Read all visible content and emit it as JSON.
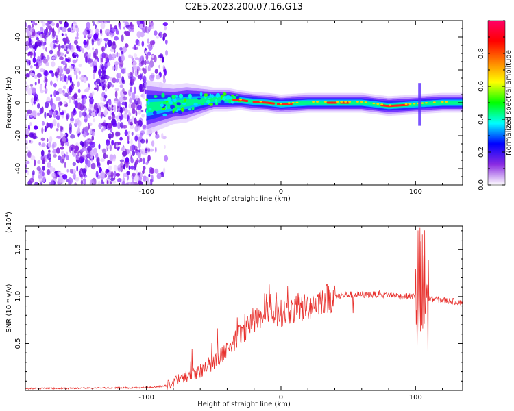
{
  "title": "C2E5.2023.200.07.16.G13",
  "chart_data": [
    {
      "type": "heatmap",
      "xlabel": "Height of straight line (km)",
      "ylabel": "Frequency (Hz)",
      "xlim": [
        -190,
        135
      ],
      "ylim": [
        -50,
        50
      ],
      "xticks": [
        -100,
        0,
        100
      ],
      "yticks": [
        -40,
        -20,
        0,
        20,
        40
      ],
      "noise_region_x": [
        -190,
        -85
      ],
      "ridge": [
        [
          -100,
          -3,
          7
        ],
        [
          -90,
          -2,
          6
        ],
        [
          -80,
          -1,
          5
        ],
        [
          -70,
          0,
          5
        ],
        [
          -60,
          1,
          4
        ],
        [
          -50,
          2,
          3
        ],
        [
          -40,
          2,
          3
        ],
        [
          -30,
          1.5,
          2.5
        ],
        [
          -20,
          0.5,
          2.5
        ],
        [
          -10,
          0,
          2.5
        ],
        [
          0,
          -1,
          2.5
        ],
        [
          20,
          0,
          2.5
        ],
        [
          40,
          0,
          2.5
        ],
        [
          60,
          0,
          2.5
        ],
        [
          80,
          -2,
          2.5
        ],
        [
          100,
          -1,
          2.5
        ],
        [
          120,
          0,
          2.5
        ],
        [
          135,
          0,
          2.5
        ]
      ],
      "colorbar": {
        "label": "Normalized spectral amplitude",
        "range": [
          0,
          1
        ],
        "ticks": [
          0.0,
          0.2,
          0.4,
          0.6,
          0.8
        ],
        "colors": [
          "#ffffff",
          "#8a2be2",
          "#0000ff",
          "#00ffff",
          "#00ff00",
          "#ffff00",
          "#ff8000",
          "#ff0000",
          "#ff0066"
        ]
      }
    },
    {
      "type": "line",
      "xlabel": "Height of straight line (km)",
      "ylabel": "SNR (10 * v/v)",
      "scale_label": "(x10",
      "scale_exp": "4",
      "scale_close": ")",
      "xlim": [
        -190,
        135
      ],
      "ylim": [
        0,
        1.75
      ],
      "xticks": [
        -100,
        0,
        100
      ],
      "yticks": [
        0.5,
        1.0,
        1.5
      ],
      "ytick_labels": [
        "0.5",
        "1.0",
        "1.5"
      ],
      "color": "#e8322e",
      "envelope": [
        [
          -190,
          0.02
        ],
        [
          -100,
          0.03
        ],
        [
          -85,
          0.05
        ],
        [
          -75,
          0.12
        ],
        [
          -60,
          0.2
        ],
        [
          -50,
          0.3
        ],
        [
          -40,
          0.45
        ],
        [
          -30,
          0.6
        ],
        [
          -20,
          0.75
        ],
        [
          -10,
          0.8
        ],
        [
          0,
          0.82
        ],
        [
          10,
          0.85
        ],
        [
          20,
          0.9
        ],
        [
          30,
          0.97
        ],
        [
          40,
          1.0
        ],
        [
          50,
          1.02
        ],
        [
          60,
          1.02
        ],
        [
          70,
          1.02
        ],
        [
          80,
          1.02
        ],
        [
          90,
          1.0
        ],
        [
          100,
          1.0
        ],
        [
          110,
          0.98
        ],
        [
          120,
          0.96
        ],
        [
          135,
          0.94
        ]
      ]
    }
  ]
}
